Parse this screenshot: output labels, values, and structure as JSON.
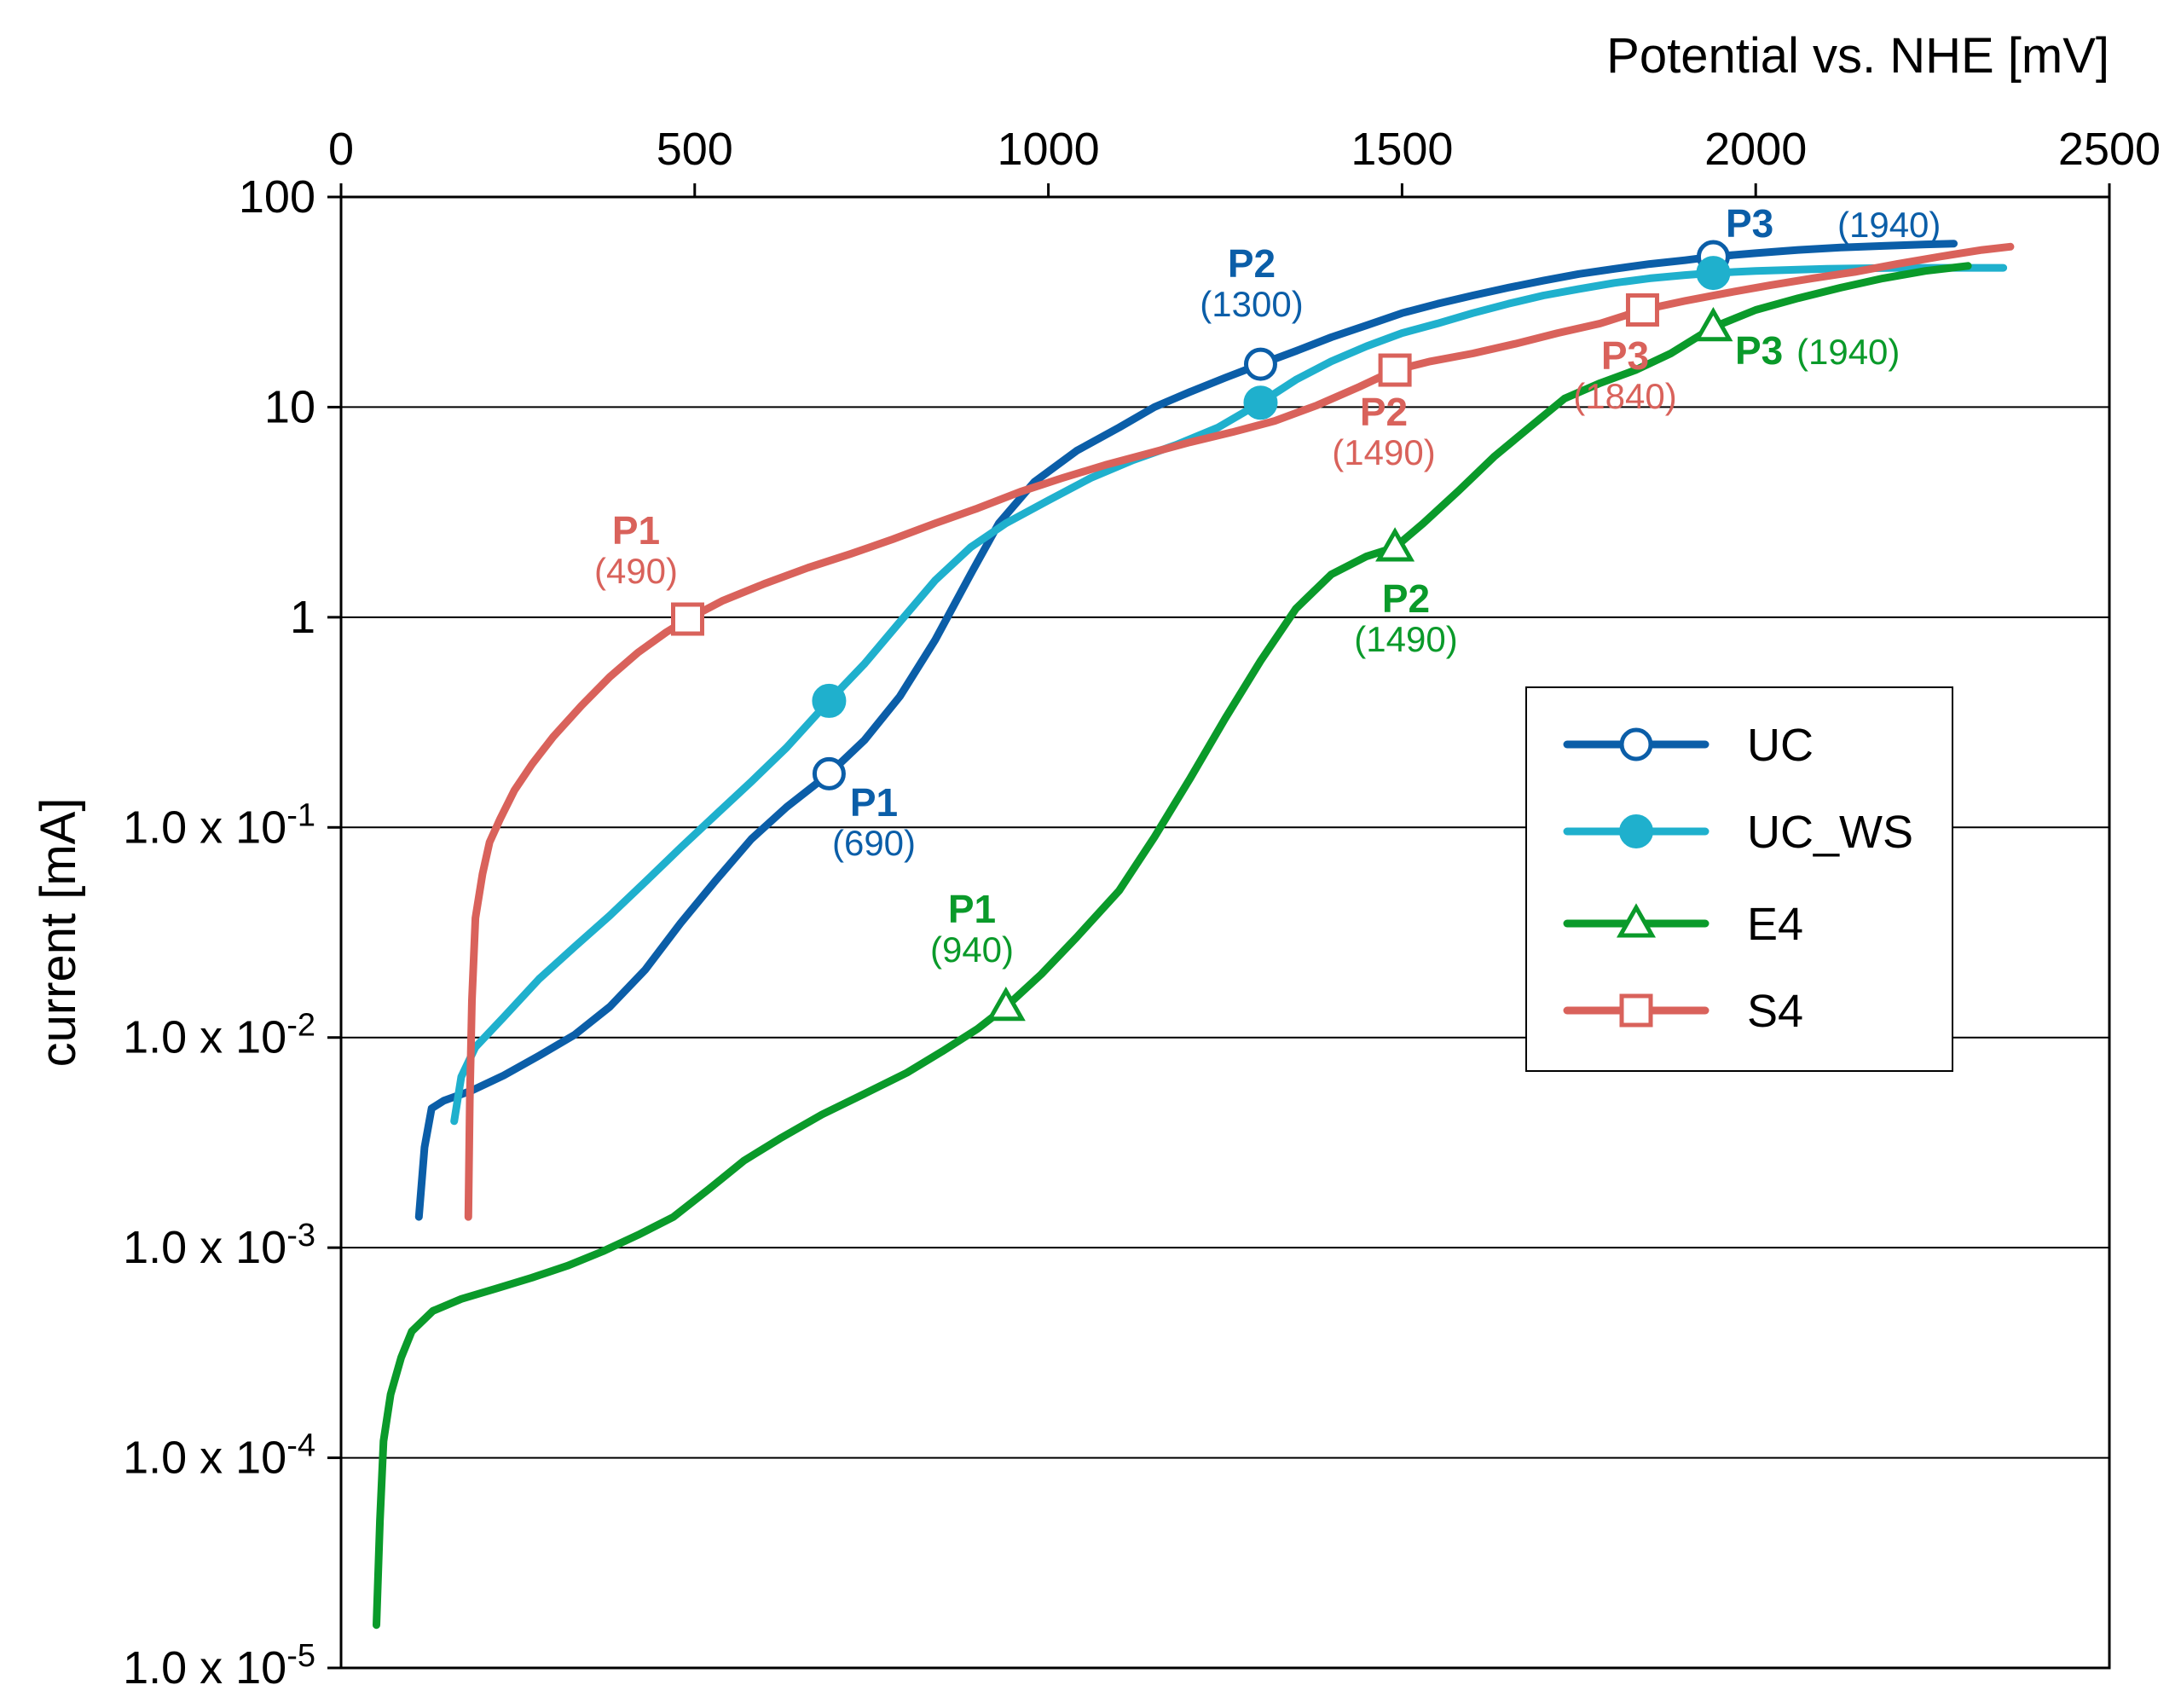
{
  "chart_data": {
    "type": "line",
    "x_axis": {
      "label": "Potential vs. NHE [mV]",
      "position": "top",
      "range": [
        0,
        2500
      ],
      "ticks": [
        0,
        500,
        1000,
        1500,
        2000,
        2500
      ],
      "tick_labels": [
        "0",
        "500",
        "1000",
        "1500",
        "2000",
        "2500"
      ]
    },
    "y_axis": {
      "label": "current [mA]",
      "scale": "log",
      "range": [
        1e-05,
        100
      ],
      "ticks": [
        1e-05,
        0.0001,
        0.001,
        0.01,
        0.1,
        1,
        10,
        100
      ],
      "tick_labels": [
        {
          "base": "1.0 x 10",
          "exp": "-5"
        },
        {
          "base": "1.0 x 10",
          "exp": "-4"
        },
        {
          "base": "1.0 x 10",
          "exp": "-3"
        },
        {
          "base": "1.0 x 10",
          "exp": "-2"
        },
        {
          "base": "1.0 x 10",
          "exp": "-1"
        },
        {
          "base": "1",
          "exp": ""
        },
        {
          "base": "10",
          "exp": ""
        },
        {
          "base": "100",
          "exp": ""
        }
      ]
    },
    "grid": {
      "horizontal": true,
      "vertical": false
    },
    "legend": {
      "position": "center-right",
      "entries": [
        "UC",
        "UC_WS",
        "E4",
        "S4"
      ]
    },
    "series": [
      {
        "name": "UC",
        "color": "#0b5ea8",
        "marker": "circle-open",
        "points": [
          [
            110,
            0.0014
          ],
          [
            118,
            0.003
          ],
          [
            128,
            0.0046
          ],
          [
            145,
            0.005
          ],
          [
            185,
            0.0056
          ],
          [
            230,
            0.0066
          ],
          [
            280,
            0.0082
          ],
          [
            330,
            0.0103
          ],
          [
            380,
            0.014
          ],
          [
            430,
            0.021
          ],
          [
            480,
            0.035
          ],
          [
            530,
            0.056
          ],
          [
            580,
            0.088
          ],
          [
            630,
            0.125
          ],
          [
            690,
            0.18
          ],
          [
            740,
            0.26
          ],
          [
            790,
            0.42
          ],
          [
            840,
            0.78
          ],
          [
            890,
            1.6
          ],
          [
            930,
            2.8
          ],
          [
            980,
            4.4
          ],
          [
            1040,
            6.2
          ],
          [
            1100,
            8.0
          ],
          [
            1150,
            10.0
          ],
          [
            1200,
            11.8
          ],
          [
            1250,
            13.8
          ],
          [
            1300,
            16
          ],
          [
            1350,
            18.5
          ],
          [
            1400,
            21.5
          ],
          [
            1450,
            24.5
          ],
          [
            1500,
            28
          ],
          [
            1550,
            31
          ],
          [
            1600,
            34
          ],
          [
            1650,
            37
          ],
          [
            1700,
            40
          ],
          [
            1750,
            43
          ],
          [
            1800,
            45.5
          ],
          [
            1850,
            48
          ],
          [
            1900,
            50
          ],
          [
            1940,
            52
          ],
          [
            2000,
            54
          ],
          [
            2060,
            56
          ],
          [
            2120,
            57.5
          ],
          [
            2180,
            58.5
          ],
          [
            2240,
            59.5
          ],
          [
            2280,
            60
          ]
        ],
        "markers": [
          [
            690,
            0.18
          ],
          [
            1300,
            16
          ],
          [
            1940,
            52
          ]
        ]
      },
      {
        "name": "UC_WS",
        "color": "#1fb0cd",
        "marker": "circle-filled",
        "points": [
          [
            160,
            0.004
          ],
          [
            170,
            0.0065
          ],
          [
            190,
            0.009
          ],
          [
            230,
            0.0125
          ],
          [
            280,
            0.019
          ],
          [
            330,
            0.027
          ],
          [
            380,
            0.038
          ],
          [
            430,
            0.055
          ],
          [
            480,
            0.08
          ],
          [
            530,
            0.115
          ],
          [
            580,
            0.165
          ],
          [
            630,
            0.24
          ],
          [
            690,
            0.4
          ],
          [
            740,
            0.6
          ],
          [
            790,
            0.95
          ],
          [
            840,
            1.5
          ],
          [
            890,
            2.15
          ],
          [
            940,
            2.8
          ],
          [
            1000,
            3.6
          ],
          [
            1060,
            4.6
          ],
          [
            1120,
            5.6
          ],
          [
            1180,
            6.6
          ],
          [
            1240,
            8.0
          ],
          [
            1300,
            10.5
          ],
          [
            1350,
            13.5
          ],
          [
            1400,
            16.5
          ],
          [
            1450,
            19.5
          ],
          [
            1500,
            22.5
          ],
          [
            1550,
            25
          ],
          [
            1600,
            28
          ],
          [
            1650,
            31
          ],
          [
            1700,
            34
          ],
          [
            1750,
            36.5
          ],
          [
            1800,
            39
          ],
          [
            1850,
            41
          ],
          [
            1900,
            42.5
          ],
          [
            1940,
            43.5
          ],
          [
            2000,
            44.5
          ],
          [
            2100,
            45.5
          ],
          [
            2200,
            46
          ],
          [
            2300,
            46
          ],
          [
            2350,
            46
          ]
        ],
        "markers": [
          [
            690,
            0.4
          ],
          [
            1300,
            10.5
          ],
          [
            1940,
            43.5
          ]
        ]
      },
      {
        "name": "E4",
        "color": "#0a9a2a",
        "marker": "triangle-open",
        "points": [
          [
            50,
            1.6e-05
          ],
          [
            55,
            5e-05
          ],
          [
            60,
            0.00012
          ],
          [
            70,
            0.0002
          ],
          [
            85,
            0.0003
          ],
          [
            100,
            0.0004
          ],
          [
            130,
            0.0005
          ],
          [
            170,
            0.00057
          ],
          [
            220,
            0.00064
          ],
          [
            270,
            0.00072
          ],
          [
            320,
            0.00082
          ],
          [
            370,
            0.00096
          ],
          [
            420,
            0.00115
          ],
          [
            470,
            0.0014
          ],
          [
            520,
            0.0019
          ],
          [
            570,
            0.0026
          ],
          [
            620,
            0.0033
          ],
          [
            680,
            0.0043
          ],
          [
            740,
            0.0054
          ],
          [
            800,
            0.0068
          ],
          [
            850,
            0.0086
          ],
          [
            900,
            0.011
          ],
          [
            940,
            0.014
          ],
          [
            990,
            0.02
          ],
          [
            1040,
            0.03
          ],
          [
            1100,
            0.05
          ],
          [
            1150,
            0.09
          ],
          [
            1200,
            0.17
          ],
          [
            1250,
            0.33
          ],
          [
            1300,
            0.62
          ],
          [
            1350,
            1.1
          ],
          [
            1400,
            1.6
          ],
          [
            1450,
            1.95
          ],
          [
            1490,
            2.15
          ],
          [
            1530,
            2.8
          ],
          [
            1580,
            4.0
          ],
          [
            1630,
            5.8
          ],
          [
            1680,
            8.0
          ],
          [
            1730,
            11
          ],
          [
            1780,
            13
          ],
          [
            1830,
            15
          ],
          [
            1880,
            18
          ],
          [
            1940,
            24
          ],
          [
            2000,
            29
          ],
          [
            2060,
            33
          ],
          [
            2120,
            37
          ],
          [
            2180,
            41
          ],
          [
            2240,
            44.5
          ],
          [
            2300,
            47
          ]
        ],
        "markers": [
          [
            940,
            0.014
          ],
          [
            1490,
            2.15
          ],
          [
            1940,
            24
          ]
        ]
      },
      {
        "name": "S4",
        "color": "#d9625b",
        "marker": "square-open",
        "points": [
          [
            180,
            0.0014
          ],
          [
            182,
            0.005
          ],
          [
            185,
            0.015
          ],
          [
            190,
            0.037
          ],
          [
            200,
            0.06
          ],
          [
            210,
            0.085
          ],
          [
            225,
            0.11
          ],
          [
            245,
            0.15
          ],
          [
            270,
            0.2
          ],
          [
            300,
            0.27
          ],
          [
            340,
            0.38
          ],
          [
            380,
            0.52
          ],
          [
            420,
            0.68
          ],
          [
            460,
            0.85
          ],
          [
            490,
            0.98
          ],
          [
            540,
            1.2
          ],
          [
            600,
            1.45
          ],
          [
            660,
            1.72
          ],
          [
            720,
            2.0
          ],
          [
            780,
            2.35
          ],
          [
            840,
            2.8
          ],
          [
            900,
            3.3
          ],
          [
            960,
            3.95
          ],
          [
            1020,
            4.6
          ],
          [
            1080,
            5.3
          ],
          [
            1140,
            6.0
          ],
          [
            1200,
            6.8
          ],
          [
            1260,
            7.6
          ],
          [
            1320,
            8.6
          ],
          [
            1380,
            10.2
          ],
          [
            1440,
            12.5
          ],
          [
            1490,
            15
          ],
          [
            1540,
            16.5
          ],
          [
            1600,
            18
          ],
          [
            1660,
            20
          ],
          [
            1720,
            22.5
          ],
          [
            1780,
            25
          ],
          [
            1840,
            29
          ],
          [
            1900,
            32
          ],
          [
            1960,
            35
          ],
          [
            2020,
            38
          ],
          [
            2080,
            41
          ],
          [
            2140,
            44
          ],
          [
            2200,
            48
          ],
          [
            2260,
            52
          ],
          [
            2320,
            56
          ],
          [
            2360,
            58
          ]
        ],
        "markers": [
          [
            490,
            0.98
          ],
          [
            1490,
            15
          ],
          [
            1840,
            29
          ]
        ]
      }
    ],
    "annotations": [
      {
        "series": "UC",
        "name": "P1",
        "value": "(690)"
      },
      {
        "series": "UC",
        "name": "P2",
        "value": "(1300)"
      },
      {
        "series": "UC",
        "name": "P3",
        "value": "(1940)"
      },
      {
        "series": "E4",
        "name": "P1",
        "value": "(940)"
      },
      {
        "series": "E4",
        "name": "P2",
        "value": "(1490)"
      },
      {
        "series": "E4",
        "name": "P3",
        "value": "(1940)"
      },
      {
        "series": "S4",
        "name": "P1",
        "value": "(490)"
      },
      {
        "series": "S4",
        "name": "P2",
        "value": "(1490)"
      },
      {
        "series": "S4",
        "name": "P3",
        "value": "(1840)"
      }
    ]
  }
}
